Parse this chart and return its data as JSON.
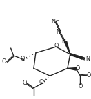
{
  "bg_color": "#ffffff",
  "line_color": "#222222",
  "lw": 1.0,
  "fs": 5.8,
  "fs_sm": 4.5,
  "figsize": [
    1.32,
    1.44
  ],
  "dpi": 100,
  "xlim": [
    0,
    132
  ],
  "ylim": [
    0,
    144
  ]
}
